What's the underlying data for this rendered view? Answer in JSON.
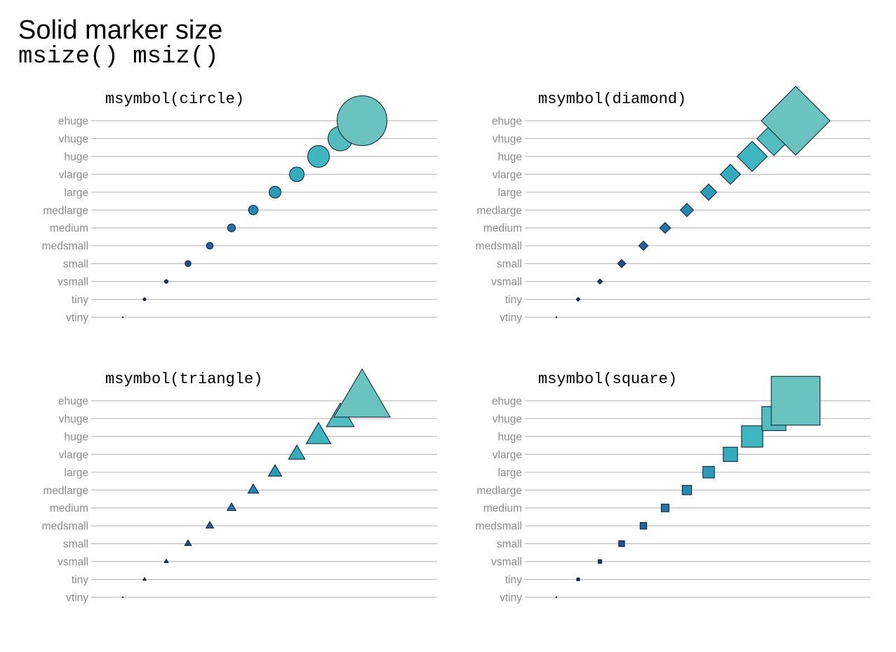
{
  "title": "Solid marker size",
  "subtitle": "msize() msiz()",
  "chart_data": [
    {
      "type": "scatter",
      "title": "msymbol(circle)",
      "symbol": "circle",
      "y_categories": [
        "vtiny",
        "tiny",
        "vsmall",
        "small",
        "medsmall",
        "medium",
        "medlarge",
        "large",
        "vlarge",
        "huge",
        "vhuge",
        "ehuge"
      ],
      "x": [
        1,
        2,
        3,
        4,
        5,
        6,
        7,
        8,
        9,
        10,
        11,
        12
      ],
      "y": [
        "vtiny",
        "tiny",
        "vsmall",
        "small",
        "medsmall",
        "medium",
        "medlarge",
        "large",
        "vlarge",
        "huge",
        "vhuge",
        "ehuge"
      ],
      "marker_size": [
        "vtiny",
        "tiny",
        "vsmall",
        "small",
        "medsmall",
        "medium",
        "medlarge",
        "large",
        "vlarge",
        "huge",
        "vhuge",
        "ehuge"
      ],
      "grid": true,
      "xlabel": "",
      "ylabel": ""
    },
    {
      "type": "scatter",
      "title": "msymbol(diamond)",
      "symbol": "diamond",
      "y_categories": [
        "vtiny",
        "tiny",
        "vsmall",
        "small",
        "medsmall",
        "medium",
        "medlarge",
        "large",
        "vlarge",
        "huge",
        "vhuge",
        "ehuge"
      ],
      "x": [
        1,
        2,
        3,
        4,
        5,
        6,
        7,
        8,
        9,
        10,
        11,
        12
      ],
      "y": [
        "vtiny",
        "tiny",
        "vsmall",
        "small",
        "medsmall",
        "medium",
        "medlarge",
        "large",
        "vlarge",
        "huge",
        "vhuge",
        "ehuge"
      ],
      "marker_size": [
        "vtiny",
        "tiny",
        "vsmall",
        "small",
        "medsmall",
        "medium",
        "medlarge",
        "large",
        "vlarge",
        "huge",
        "vhuge",
        "ehuge"
      ],
      "grid": true,
      "xlabel": "",
      "ylabel": ""
    },
    {
      "type": "scatter",
      "title": "msymbol(triangle)",
      "symbol": "triangle",
      "y_categories": [
        "vtiny",
        "tiny",
        "vsmall",
        "small",
        "medsmall",
        "medium",
        "medlarge",
        "large",
        "vlarge",
        "huge",
        "vhuge",
        "ehuge"
      ],
      "x": [
        1,
        2,
        3,
        4,
        5,
        6,
        7,
        8,
        9,
        10,
        11,
        12
      ],
      "y": [
        "vtiny",
        "tiny",
        "vsmall",
        "small",
        "medsmall",
        "medium",
        "medlarge",
        "large",
        "vlarge",
        "huge",
        "vhuge",
        "ehuge"
      ],
      "marker_size": [
        "vtiny",
        "tiny",
        "vsmall",
        "small",
        "medsmall",
        "medium",
        "medlarge",
        "large",
        "vlarge",
        "huge",
        "vhuge",
        "ehuge"
      ],
      "grid": true,
      "xlabel": "",
      "ylabel": ""
    },
    {
      "type": "scatter",
      "title": "msymbol(square)",
      "symbol": "square",
      "y_categories": [
        "vtiny",
        "tiny",
        "vsmall",
        "small",
        "medsmall",
        "medium",
        "medlarge",
        "large",
        "vlarge",
        "huge",
        "vhuge",
        "ehuge"
      ],
      "x": [
        1,
        2,
        3,
        4,
        5,
        6,
        7,
        8,
        9,
        10,
        11,
        12
      ],
      "y": [
        "vtiny",
        "tiny",
        "vsmall",
        "small",
        "medsmall",
        "medium",
        "medlarge",
        "large",
        "vlarge",
        "huge",
        "vhuge",
        "ehuge"
      ],
      "marker_size": [
        "vtiny",
        "tiny",
        "vsmall",
        "small",
        "medsmall",
        "medium",
        "medlarge",
        "large",
        "vlarge",
        "huge",
        "vhuge",
        "ehuge"
      ],
      "grid": true,
      "xlabel": "",
      "ylabel": ""
    }
  ],
  "colors": {
    "marker_palette": [
      "#1b1f4b",
      "#1f2a5e",
      "#233a73",
      "#254e8a",
      "#25619b",
      "#2374a8",
      "#2588b3",
      "#2c9ab8",
      "#35abbd",
      "#3fb5c0",
      "#53bcc1",
      "#6ac3be"
    ],
    "marker_outline": "#0b1a33",
    "grid": "#bdbdbd",
    "tick_text": "#8a8a8a"
  }
}
